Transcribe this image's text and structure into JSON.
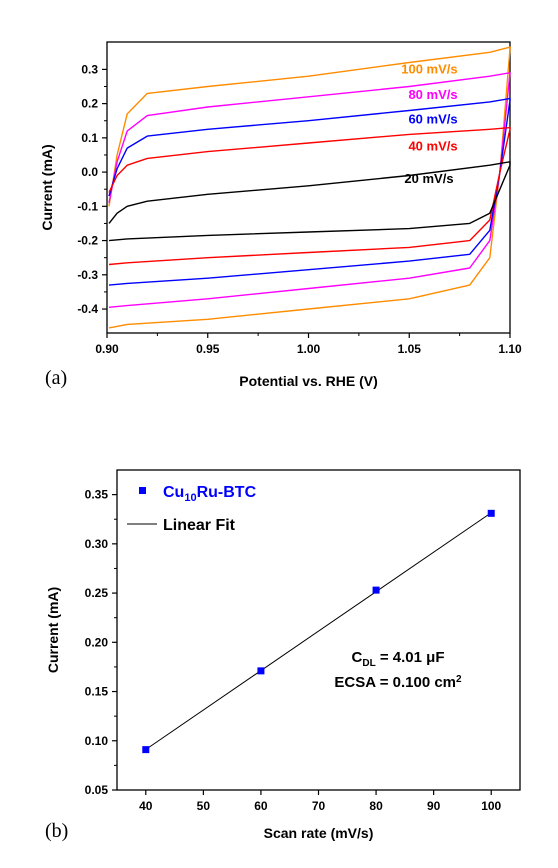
{
  "chart_data": [
    {
      "panel": "(a)",
      "type": "line",
      "xlabel": "Potential vs. RHE (V)",
      "ylabel": "Current (mA)",
      "xlim": [
        0.9,
        1.1
      ],
      "ylim": [
        -0.47,
        0.38
      ],
      "xticks": [
        0.9,
        0.95,
        1.0,
        1.05,
        1.1
      ],
      "xtick_labels": [
        "0.90",
        "0.95",
        "1.00",
        "1.05",
        "1.10"
      ],
      "yticks": [
        -0.4,
        -0.3,
        -0.2,
        -0.1,
        0.0,
        0.1,
        0.2,
        0.3
      ],
      "ytick_labels": [
        "-0.4",
        "-0.3",
        "-0.2",
        "-0.1",
        "0.0",
        "0.1",
        "0.2",
        "0.3"
      ],
      "series": [
        {
          "name": "100 mV/s",
          "color": "#FF8C00",
          "anodic_x": [
            0.901,
            0.905,
            0.91,
            0.92,
            0.95,
            1.0,
            1.05,
            1.09,
            1.1
          ],
          "anodic_y": [
            -0.1,
            0.05,
            0.17,
            0.23,
            0.25,
            0.28,
            0.32,
            0.35,
            0.365
          ],
          "cathodic_x": [
            1.1,
            1.095,
            1.09,
            1.08,
            1.05,
            1.0,
            0.95,
            0.91,
            0.901
          ],
          "cathodic_y": [
            0.36,
            0.0,
            -0.25,
            -0.33,
            -0.37,
            -0.4,
            -0.43,
            -0.445,
            -0.455
          ]
        },
        {
          "name": "80 mV/s",
          "color": "#FF00FF",
          "anodic_x": [
            0.901,
            0.905,
            0.91,
            0.92,
            0.95,
            1.0,
            1.05,
            1.09,
            1.1
          ],
          "anodic_y": [
            -0.09,
            0.03,
            0.12,
            0.165,
            0.19,
            0.22,
            0.25,
            0.28,
            0.29
          ],
          "cathodic_x": [
            1.1,
            1.095,
            1.09,
            1.08,
            1.05,
            1.0,
            0.95,
            0.91,
            0.901
          ],
          "cathodic_y": [
            0.29,
            0.0,
            -0.2,
            -0.28,
            -0.31,
            -0.34,
            -0.37,
            -0.39,
            -0.395
          ]
        },
        {
          "name": "60 mV/s",
          "color": "#0000FF",
          "anodic_x": [
            0.901,
            0.905,
            0.91,
            0.92,
            0.95,
            1.0,
            1.05,
            1.09,
            1.1
          ],
          "anodic_y": [
            -0.07,
            0.01,
            0.07,
            0.105,
            0.125,
            0.15,
            0.18,
            0.205,
            0.215
          ],
          "cathodic_x": [
            1.1,
            1.095,
            1.09,
            1.08,
            1.05,
            1.0,
            0.95,
            0.91,
            0.901
          ],
          "cathodic_y": [
            0.21,
            0.0,
            -0.17,
            -0.24,
            -0.26,
            -0.285,
            -0.31,
            -0.325,
            -0.33
          ]
        },
        {
          "name": "40 mV/s",
          "color": "#FF0000",
          "anodic_x": [
            0.901,
            0.905,
            0.91,
            0.92,
            0.95,
            1.0,
            1.05,
            1.09,
            1.1
          ],
          "anodic_y": [
            -0.06,
            -0.01,
            0.02,
            0.04,
            0.06,
            0.085,
            0.11,
            0.125,
            0.13
          ],
          "cathodic_x": [
            1.1,
            1.095,
            1.09,
            1.08,
            1.05,
            1.0,
            0.95,
            0.91,
            0.901
          ],
          "cathodic_y": [
            0.125,
            0.0,
            -0.14,
            -0.2,
            -0.22,
            -0.235,
            -0.25,
            -0.265,
            -0.27
          ]
        },
        {
          "name": "20 mV/s",
          "color": "#000000",
          "anodic_x": [
            0.901,
            0.905,
            0.91,
            0.92,
            0.95,
            1.0,
            1.05,
            1.09,
            1.1
          ],
          "anodic_y": [
            -0.15,
            -0.12,
            -0.1,
            -0.085,
            -0.065,
            -0.04,
            -0.01,
            0.02,
            0.03
          ],
          "cathodic_x": [
            1.1,
            1.095,
            1.09,
            1.08,
            1.05,
            1.0,
            0.95,
            0.91,
            0.901
          ],
          "cathodic_y": [
            0.02,
            -0.05,
            -0.12,
            -0.15,
            -0.165,
            -0.175,
            -0.185,
            -0.195,
            -0.2
          ]
        }
      ]
    },
    {
      "panel": "(b)",
      "type": "scatter",
      "xlabel": "Scan rate (mV/s)",
      "ylabel": "Current (mA)",
      "xlim": [
        35,
        105
      ],
      "ylim": [
        0.05,
        0.375
      ],
      "xticks": [
        40,
        50,
        60,
        70,
        80,
        90,
        100
      ],
      "xtick_labels": [
        "40",
        "50",
        "60",
        "70",
        "80",
        "90",
        "100"
      ],
      "yticks": [
        0.05,
        0.1,
        0.15,
        0.2,
        0.25,
        0.3,
        0.35
      ],
      "ytick_labels": [
        "0.05",
        "0.10",
        "0.15",
        "0.20",
        "0.25",
        "0.30",
        "0.35"
      ],
      "series": [
        {
          "name_main": "Cu",
          "name_sub": "10",
          "name_rest": "Ru-BTC",
          "color": "#0000FF",
          "x": [
            40,
            60,
            80,
            100
          ],
          "y": [
            0.091,
            0.171,
            0.253,
            0.331
          ]
        },
        {
          "name": "Linear Fit",
          "color": "#000000",
          "slope": 0.004008,
          "intercept": -0.0692
        }
      ],
      "annotation": {
        "cdl_main": "C",
        "cdl_sub": "DL",
        "cdl_rest": " = 4.01 μF",
        "ecsa_main": "ECSA = 0.100 cm",
        "ecsa_sup": "2"
      }
    }
  ]
}
